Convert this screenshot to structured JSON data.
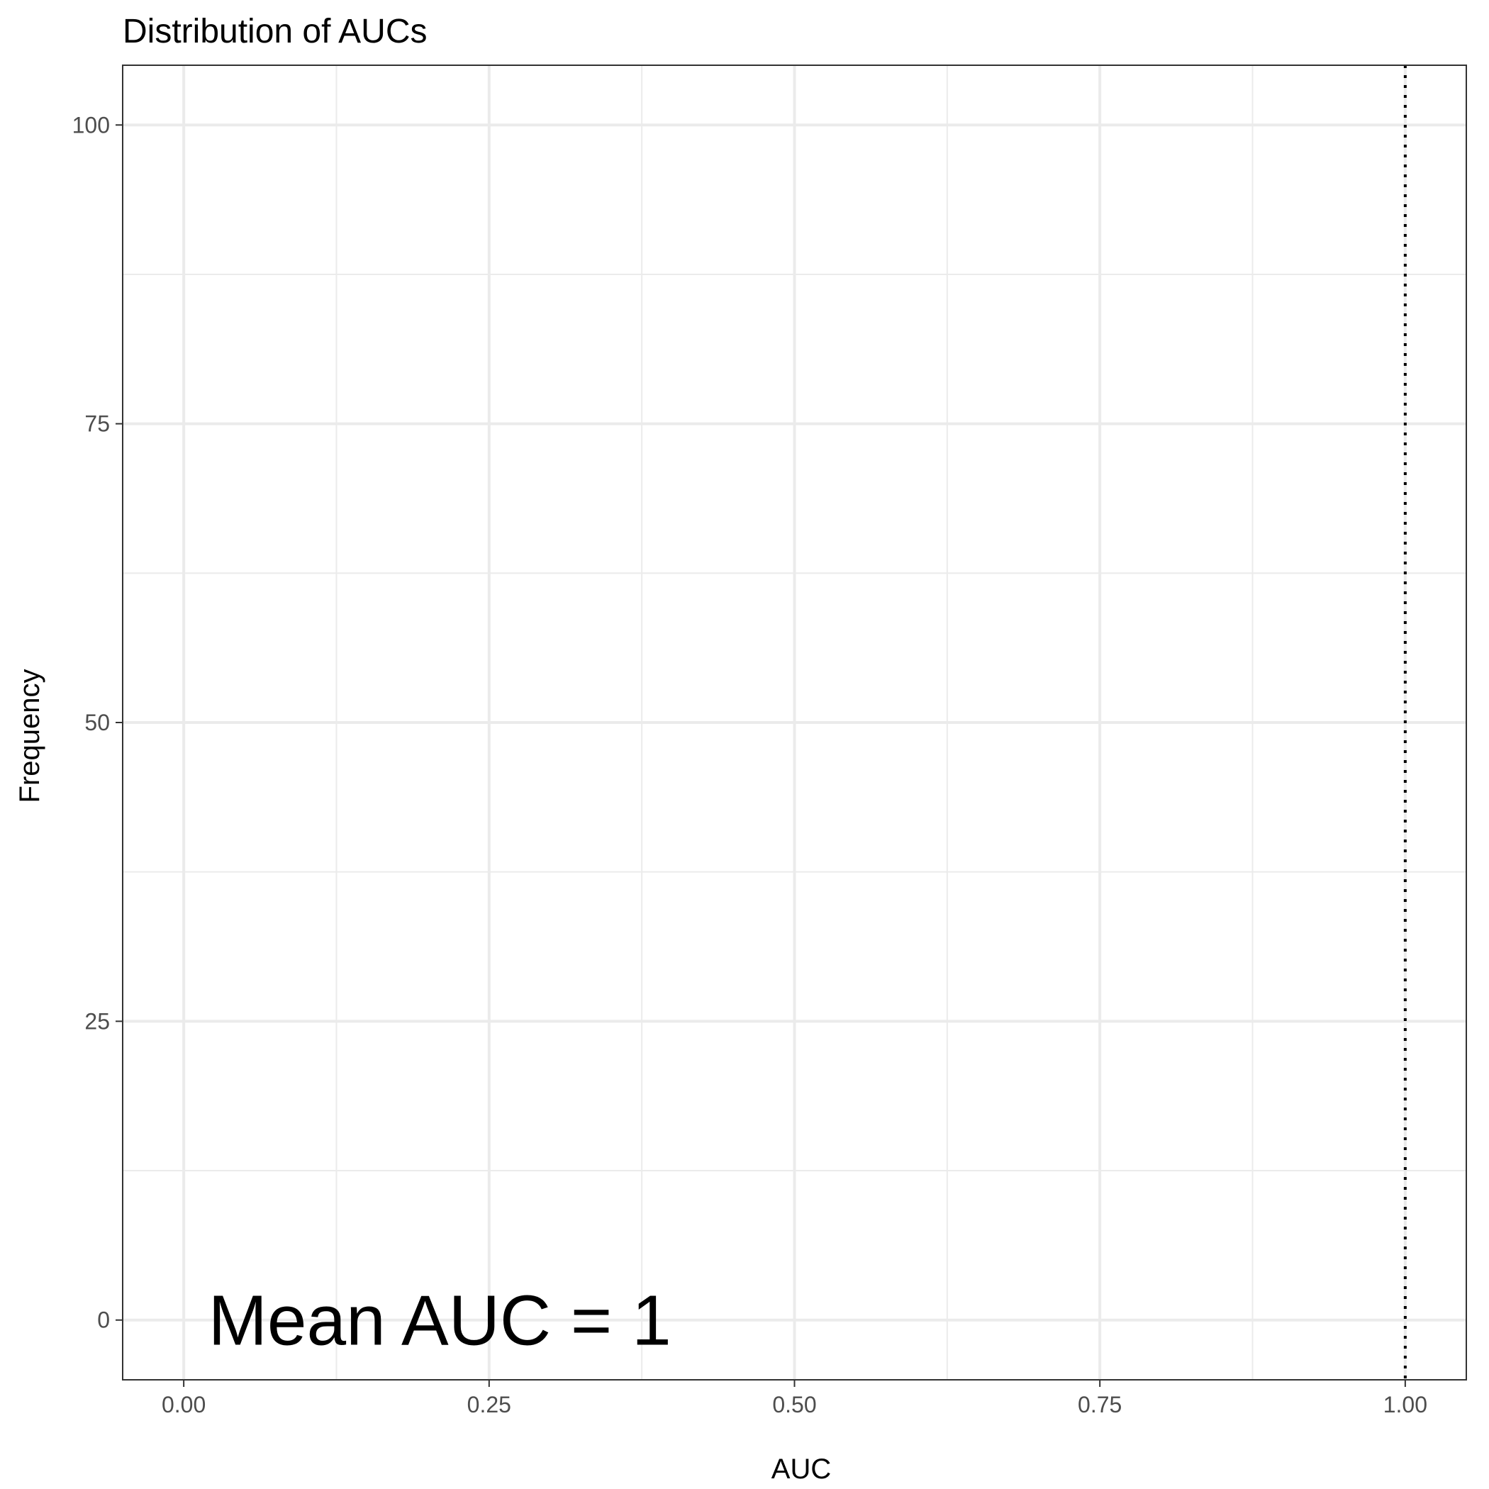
{
  "chart_data": {
    "type": "histogram",
    "title": "Distribution of AUCs",
    "xlabel": "AUC",
    "ylabel": "Frequency",
    "xlim": [
      -0.05,
      1.05
    ],
    "ylim": [
      -5,
      105
    ],
    "x_ticks": [
      0,
      0.25,
      0.5,
      0.75,
      1
    ],
    "x_tick_labels": [
      "0.00",
      "0.25",
      "0.50",
      "0.75",
      "1.00"
    ],
    "y_ticks": [
      0,
      25,
      50,
      75,
      100
    ],
    "y_tick_labels": [
      "0",
      "25",
      "50",
      "75",
      "100"
    ],
    "x_minor_ticks": [
      0.125,
      0.375,
      0.625,
      0.875
    ],
    "y_minor_ticks": [
      12.5,
      37.5,
      62.5,
      87.5
    ],
    "bars": [],
    "reference_line": {
      "x": 1,
      "style": "dotted",
      "color": "#000000"
    },
    "annotation": {
      "text": "Mean AUC = 1",
      "x": 0.02,
      "y": 0
    },
    "grid": true,
    "legend": "none",
    "colors": {
      "background": "#ffffff",
      "grid": "#ebebeb",
      "panel_border": "#333333",
      "tick_text": "#4d4d4d",
      "text": "#000000"
    }
  }
}
